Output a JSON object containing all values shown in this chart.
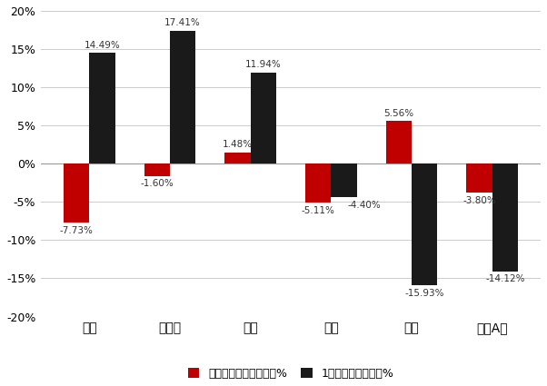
{
  "categories": [
    "美国",
    "欧元区",
    "英国",
    "日本",
    "港股",
    "中国A股"
  ],
  "ytd_values": [
    -7.73,
    -1.6,
    1.48,
    -5.11,
    5.56,
    -3.8
  ],
  "one_year_values": [
    14.49,
    17.41,
    11.94,
    -4.4,
    -15.93,
    -14.12
  ],
  "ytd_color": "#C00000",
  "one_year_color": "#1A1A1A",
  "ytd_label": "年初至今指数价格变动%",
  "one_year_label": "1年内指数价格变动%",
  "ylim": [
    -20,
    20
  ],
  "yticks": [
    -20,
    -15,
    -10,
    -5,
    0,
    5,
    10,
    15,
    20
  ],
  "bar_width": 0.32,
  "background_color": "#FFFFFF",
  "grid_color": "#CCCCCC",
  "label_fontsize": 7.5,
  "tick_fontsize": 9,
  "xtick_fontsize": 10
}
